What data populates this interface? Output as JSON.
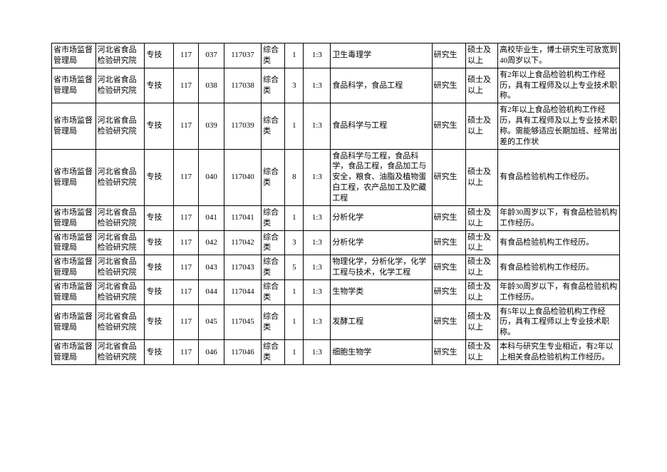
{
  "rows": [
    {
      "c1": "省市场监督管理局",
      "c2": "河北省食品检验研究院",
      "c3": "专技",
      "c4": "117",
      "c5": "037",
      "c6": "117037",
      "c7": "综合类",
      "c8": "1",
      "c9": "1:3",
      "c10": "卫生毒理学",
      "c11": "研究生",
      "c12": "硕士及以上",
      "c13": "高校毕业生，博士研究生可放宽到40周岁以下。"
    },
    {
      "c1": "省市场监督管理局",
      "c2": "河北省食品检验研究院",
      "c3": "专技",
      "c4": "117",
      "c5": "038",
      "c6": "117038",
      "c7": "综合类",
      "c8": "3",
      "c9": "1:3",
      "c10": "食品科学，食品工程",
      "c11": "研究生",
      "c12": "硕士及以上",
      "c13": "有2年以上食品检验机构工作经历，具有工程师及以上专业技术职称。"
    },
    {
      "c1": "省市场监督管理局",
      "c2": "河北省食品检验研究院",
      "c3": "专技",
      "c4": "117",
      "c5": "039",
      "c6": "117039",
      "c7": "综合类",
      "c8": "1",
      "c9": "1:3",
      "c10": "食品科学与工程",
      "c11": "研究生",
      "c12": "硕士及以上",
      "c13": "有2年以上食品检验机构工作经历，具有工程师及以上专业技术职称。需能够适应长期加班、经常出差的工作状"
    },
    {
      "c1": "省市场监督管理局",
      "c2": "河北省食品检验研究院",
      "c3": "专技",
      "c4": "117",
      "c5": "040",
      "c6": "117040",
      "c7": "综合类",
      "c8": "8",
      "c9": "1:3",
      "c10": "食品科学与工程，食品科学，食品工程，食品加工与安全，粮食、油脂及植物蛋白工程，农产品加工及贮藏工程",
      "c11": "研究生",
      "c12": "硕士及以上",
      "c13": "有食品检验机构工作经历。"
    },
    {
      "c1": "省市场监督管理局",
      "c2": "河北省食品检验研究院",
      "c3": "专技",
      "c4": "117",
      "c5": "041",
      "c6": "117041",
      "c7": "综合类",
      "c8": "1",
      "c9": "1:3",
      "c10": "分析化学",
      "c11": "研究生",
      "c12": "硕士及以上",
      "c13": "年龄30周岁以下，有食品检验机构工作经历。"
    },
    {
      "c1": "省市场监督管理局",
      "c2": "河北省食品检验研究院",
      "c3": "专技",
      "c4": "117",
      "c5": "042",
      "c6": "117042",
      "c7": "综合类",
      "c8": "3",
      "c9": "1:3",
      "c10": "分析化学",
      "c11": "研究生",
      "c12": "硕士及以上",
      "c13": "有食品检验机构工作经历。"
    },
    {
      "c1": "省市场监督管理局",
      "c2": "河北省食品检验研究院",
      "c3": "专技",
      "c4": "117",
      "c5": "043",
      "c6": "117043",
      "c7": "综合类",
      "c8": "5",
      "c9": "1:3",
      "c10": "物理化学，分析化学，化学工程与技术，化学工程",
      "c11": "研究生",
      "c12": "硕士及以上",
      "c13": "有食品检验机构工作经历。"
    },
    {
      "c1": "省市场监督管理局",
      "c2": "河北省食品检验研究院",
      "c3": "专技",
      "c4": "117",
      "c5": "044",
      "c6": "117044",
      "c7": "综合类",
      "c8": "1",
      "c9": "1:3",
      "c10": "生物学类",
      "c11": "研究生",
      "c12": "硕士及以上",
      "c13": "年龄30周岁以下，有食品检验机构工作经历。"
    },
    {
      "c1": "省市场监督管理局",
      "c2": "河北省食品检验研究院",
      "c3": "专技",
      "c4": "117",
      "c5": "045",
      "c6": "117045",
      "c7": "综合类",
      "c8": "1",
      "c9": "1:3",
      "c10": "发酵工程",
      "c11": "研究生",
      "c12": "硕士及以上",
      "c13": "有5年以上食品检验机构工作经历，具有工程师以上专业技术职称。"
    },
    {
      "c1": "省市场监督管理局",
      "c2": "河北省食品检验研究院",
      "c3": "专技",
      "c4": "117",
      "c5": "046",
      "c6": "117046",
      "c7": "综合类",
      "c8": "1",
      "c9": "1:3",
      "c10": "细胞生物学",
      "c11": "研究生",
      "c12": "硕士及以上",
      "c13": "本科与研究生专业相近，有2年以上相关食品检验机构工作经历。"
    }
  ]
}
